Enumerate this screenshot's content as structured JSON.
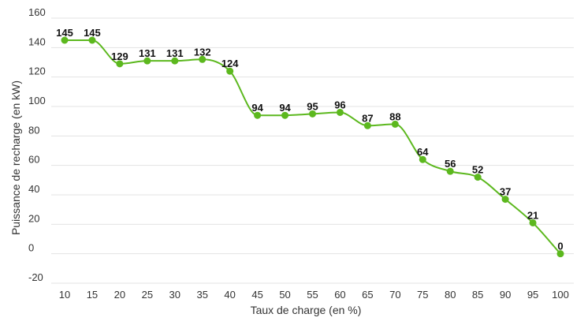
{
  "chart_data": {
    "type": "line",
    "title": "",
    "xlabel": "Taux de charge (en %)",
    "ylabel": "Puissance de recharge (en kW)",
    "x": [
      10,
      15,
      20,
      25,
      30,
      35,
      40,
      45,
      50,
      55,
      60,
      65,
      70,
      75,
      80,
      85,
      90,
      95,
      100
    ],
    "series": [
      {
        "name": "",
        "values": [
          145,
          145,
          129,
          131,
          131,
          132,
          124,
          94,
          94,
          95,
          96,
          87,
          88,
          64,
          56,
          52,
          37,
          21,
          0
        ],
        "color": "#5cb81e",
        "data_labels": true,
        "smooth": true
      }
    ],
    "ylim": [
      -20,
      160
    ],
    "yticks": [
      -20,
      0,
      20,
      40,
      60,
      80,
      100,
      120,
      140,
      160
    ],
    "xticks": [
      10,
      15,
      20,
      25,
      30,
      35,
      40,
      45,
      50,
      55,
      60,
      65,
      70,
      75,
      80,
      85,
      90,
      95,
      100
    ],
    "grid": "horizontal",
    "legend": "none"
  },
  "colors": {
    "line": "#5cb81e",
    "grid": "#e3e3e3",
    "text": "#333333",
    "label": "#111111"
  }
}
